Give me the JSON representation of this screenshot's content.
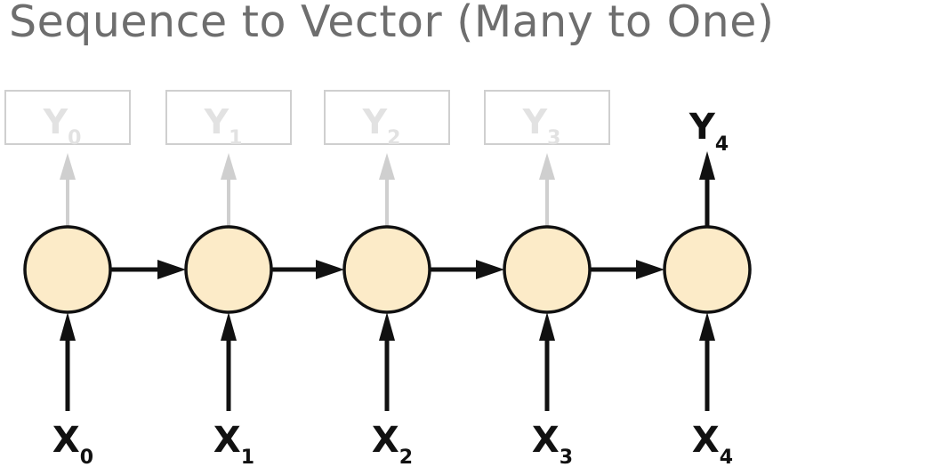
{
  "title": "Sequence to Vector (Many to One)",
  "colors": {
    "node_fill": "#fcebc8",
    "active": "#111111",
    "inactive": "#cfcfcf",
    "title": "#6e6e6e"
  },
  "steps": [
    {
      "input": {
        "letter": "X",
        "sub": "0"
      },
      "output": {
        "letter": "Y",
        "sub": "0"
      },
      "output_active": false
    },
    {
      "input": {
        "letter": "X",
        "sub": "1"
      },
      "output": {
        "letter": "Y",
        "sub": "1"
      },
      "output_active": false
    },
    {
      "input": {
        "letter": "X",
        "sub": "2"
      },
      "output": {
        "letter": "Y",
        "sub": "2"
      },
      "output_active": false
    },
    {
      "input": {
        "letter": "X",
        "sub": "3"
      },
      "output": {
        "letter": "Y",
        "sub": "3"
      },
      "output_active": false
    },
    {
      "input": {
        "letter": "X",
        "sub": "4"
      },
      "output": {
        "letter": "Y",
        "sub": "4"
      },
      "output_active": true
    }
  ]
}
